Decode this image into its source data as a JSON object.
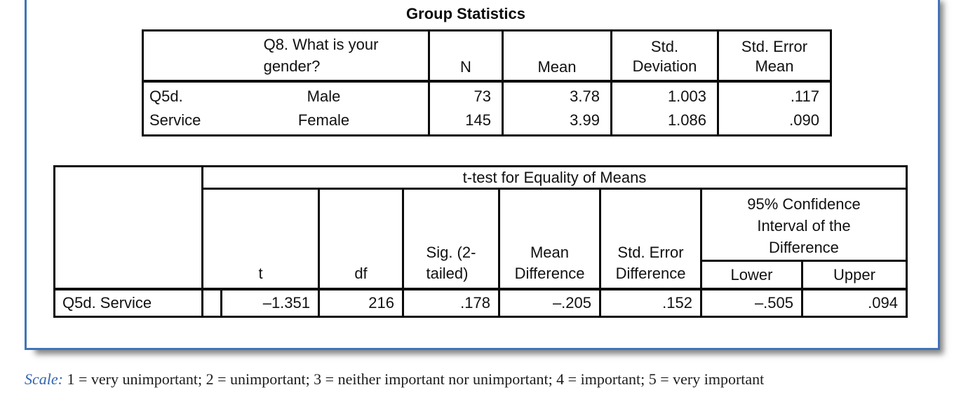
{
  "group_stats": {
    "title": "Group Statistics",
    "header": {
      "group_question": "Q8. What is your\ngender?",
      "n": "N",
      "mean": "Mean",
      "std_deviation": "Std.\nDeviation",
      "std_error_mean": "Std. Error\nMean"
    },
    "row_label": "Q5d.\nService",
    "rows": [
      {
        "gender": "Male",
        "n": "73",
        "mean": "3.78",
        "std_deviation": "1.003",
        "std_error_mean": ".117"
      },
      {
        "gender": "Female",
        "n": "145",
        "mean": "3.99",
        "std_deviation": "1.086",
        "std_error_mean": ".090"
      }
    ],
    "genders_display": "Male\nFemale"
  },
  "ttest": {
    "span_header": "t-test for Equality of Means",
    "header": {
      "t": "t",
      "df": "df",
      "sig": "Sig. (2-\ntailed)",
      "mean_difference": "Mean\nDifference",
      "std_error_difference": "Std. Error\nDifference",
      "ci": "95% Confidence\nInterval of the\nDifference",
      "lower": "Lower",
      "upper": "Upper"
    },
    "row": {
      "label": "Q5d. Service",
      "t": "–1.351",
      "df": "216",
      "sig": ".178",
      "mean_difference": "–.205",
      "std_error_difference": ".152",
      "lower": "–.505",
      "upper": ".094"
    }
  },
  "scale_note": {
    "label": "Scale:",
    "text": " 1 = very unimportant; 2 = unimportant; 3 = neither important nor unimportant; 4 = important; 5 = very important"
  },
  "colors": {
    "frame_border": "#4273b8",
    "table_border": "#0b0b0b",
    "scale_label_blue": "#3365ae",
    "text": "#111111"
  }
}
